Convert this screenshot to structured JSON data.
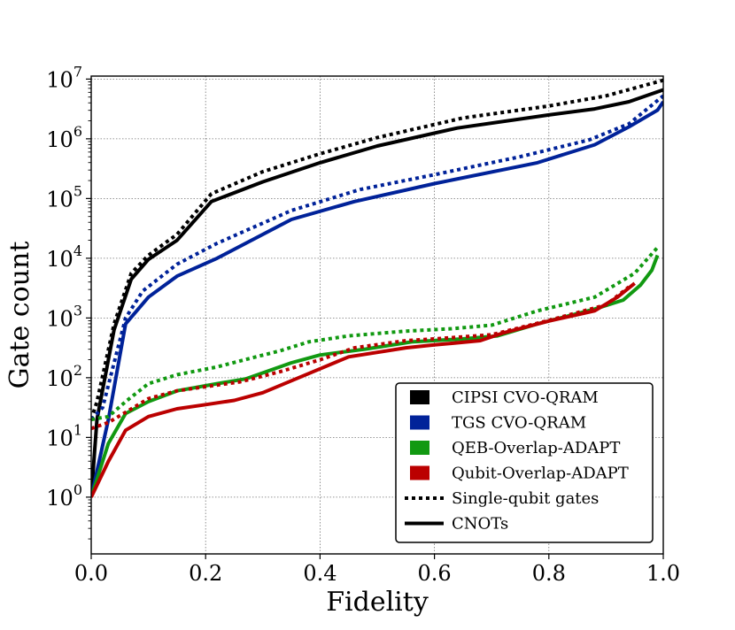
{
  "chart_data": {
    "type": "line",
    "xlabel": "Fidelity",
    "ylabel": "Gate count",
    "xlim": [
      0.0,
      1.0
    ],
    "ylim_log10": [
      -0.95,
      7.05
    ],
    "y_scale": "log",
    "grid": true,
    "legend_position": "lower-right",
    "x_ticks": [
      "0.0",
      "0.2",
      "0.4",
      "0.6",
      "0.8",
      "1.0"
    ],
    "x_tick_values": [
      0.0,
      0.2,
      0.4,
      0.6,
      0.8,
      1.0
    ],
    "y_ticks": [
      {
        "base": "10",
        "exp": "0",
        "value": 0
      },
      {
        "base": "10",
        "exp": "1",
        "value": 1
      },
      {
        "base": "10",
        "exp": "2",
        "value": 2
      },
      {
        "base": "10",
        "exp": "3",
        "value": 3
      },
      {
        "base": "10",
        "exp": "4",
        "value": 4
      },
      {
        "base": "10",
        "exp": "5",
        "value": 5
      },
      {
        "base": "10",
        "exp": "6",
        "value": 6
      },
      {
        "base": "10",
        "exp": "7",
        "value": 7
      }
    ],
    "legend": [
      {
        "label": "CIPSI CVO-QRAM",
        "kind": "patch",
        "color": "#000000"
      },
      {
        "label": "TGS CVO-QRAM",
        "kind": "patch",
        "color": "#002299"
      },
      {
        "label": "QEB-Overlap-ADAPT",
        "kind": "patch",
        "color": "#119911"
      },
      {
        "label": "Qubit-Overlap-ADAPT",
        "kind": "patch",
        "color": "#bb0000"
      },
      {
        "label": "Single-qubit gates",
        "kind": "dotted",
        "color": "#000000"
      },
      {
        "label": "CNOTs",
        "kind": "solid",
        "color": "#000000"
      }
    ],
    "series": [
      {
        "name": "CIPSI CVO-QRAM single-qubit gates",
        "color": "#000000",
        "style": "dotted",
        "x": [
          0.0,
          0.01,
          0.04,
          0.07,
          0.1,
          0.15,
          0.21,
          0.3,
          0.4,
          0.5,
          0.65,
          0.8,
          0.9,
          1.0
        ],
        "y": [
          1.3,
          1.6,
          2.9,
          3.75,
          4.05,
          4.4,
          5.08,
          5.45,
          5.75,
          6.02,
          6.35,
          6.55,
          6.72,
          6.98
        ]
      },
      {
        "name": "CIPSI CVO-QRAM CNOTs",
        "color": "#000000",
        "style": "solid",
        "x": [
          0.0,
          0.01,
          0.04,
          0.07,
          0.1,
          0.15,
          0.21,
          0.3,
          0.4,
          0.5,
          0.64,
          0.8,
          0.88,
          0.94,
          1.0
        ],
        "y": [
          0.0,
          1.3,
          2.8,
          3.65,
          3.98,
          4.3,
          4.95,
          5.28,
          5.6,
          5.88,
          6.18,
          6.4,
          6.5,
          6.62,
          6.82
        ]
      },
      {
        "name": "TGS CVO-QRAM single-qubit gates",
        "color": "#002299",
        "style": "dotted",
        "x": [
          0.0,
          0.02,
          0.06,
          0.09,
          0.15,
          0.22,
          0.35,
          0.47,
          0.6,
          0.75,
          0.87,
          0.94,
          1.0
        ],
        "y": [
          1.3,
          1.5,
          3.0,
          3.45,
          3.9,
          4.25,
          4.8,
          5.15,
          5.4,
          5.7,
          5.98,
          6.25,
          6.72
        ]
      },
      {
        "name": "TGS CVO-QRAM CNOTs",
        "color": "#002299",
        "style": "solid",
        "x": [
          0.0,
          0.03,
          0.06,
          0.1,
          0.15,
          0.22,
          0.35,
          0.46,
          0.6,
          0.78,
          0.88,
          0.94,
          0.99,
          1.0
        ],
        "y": [
          0.0,
          1.3,
          2.9,
          3.35,
          3.7,
          4.0,
          4.65,
          4.95,
          5.25,
          5.6,
          5.9,
          6.2,
          6.48,
          6.62
        ]
      },
      {
        "name": "QEB-Overlap-ADAPT single-qubit gates",
        "color": "#119911",
        "style": "dotted",
        "x": [
          0.0,
          0.03,
          0.06,
          0.1,
          0.15,
          0.22,
          0.28,
          0.33,
          0.38,
          0.45,
          0.55,
          0.63,
          0.7,
          0.78,
          0.88,
          0.95,
          0.99
        ],
        "y": [
          1.3,
          1.35,
          1.6,
          1.9,
          2.05,
          2.18,
          2.33,
          2.45,
          2.6,
          2.7,
          2.78,
          2.82,
          2.88,
          3.12,
          3.35,
          3.75,
          4.18
        ]
      },
      {
        "name": "QEB-Overlap-ADAPT CNOTs",
        "color": "#119911",
        "style": "solid",
        "x": [
          0.0,
          0.03,
          0.06,
          0.1,
          0.15,
          0.22,
          0.27,
          0.35,
          0.4,
          0.48,
          0.56,
          0.65,
          0.71,
          0.78,
          0.88,
          0.93,
          0.96,
          0.98,
          0.99
        ],
        "y": [
          0.0,
          0.9,
          1.4,
          1.6,
          1.78,
          1.9,
          1.98,
          2.25,
          2.38,
          2.48,
          2.6,
          2.65,
          2.7,
          2.9,
          3.15,
          3.3,
          3.55,
          3.8,
          4.05
        ]
      },
      {
        "name": "Qubit-Overlap-ADAPT single-qubit gates",
        "color": "#bb0000",
        "style": "dotted",
        "x": [
          0.0,
          0.03,
          0.06,
          0.1,
          0.15,
          0.2,
          0.26,
          0.33,
          0.4,
          0.46,
          0.55,
          0.6,
          0.7,
          0.8,
          0.9,
          0.94
        ],
        "y": [
          1.15,
          1.25,
          1.42,
          1.65,
          1.78,
          1.85,
          1.93,
          2.1,
          2.3,
          2.5,
          2.62,
          2.65,
          2.72,
          2.96,
          3.22,
          3.52
        ]
      },
      {
        "name": "Qubit-Overlap-ADAPT CNOTs",
        "color": "#bb0000",
        "style": "solid",
        "x": [
          0.0,
          0.03,
          0.06,
          0.1,
          0.15,
          0.2,
          0.25,
          0.3,
          0.35,
          0.4,
          0.45,
          0.55,
          0.6,
          0.68,
          0.72,
          0.8,
          0.88,
          0.92,
          0.95
        ],
        "y": [
          0.0,
          0.6,
          1.12,
          1.35,
          1.48,
          1.55,
          1.62,
          1.75,
          1.95,
          2.15,
          2.35,
          2.5,
          2.55,
          2.62,
          2.75,
          2.95,
          3.12,
          3.35,
          3.58
        ]
      }
    ]
  }
}
